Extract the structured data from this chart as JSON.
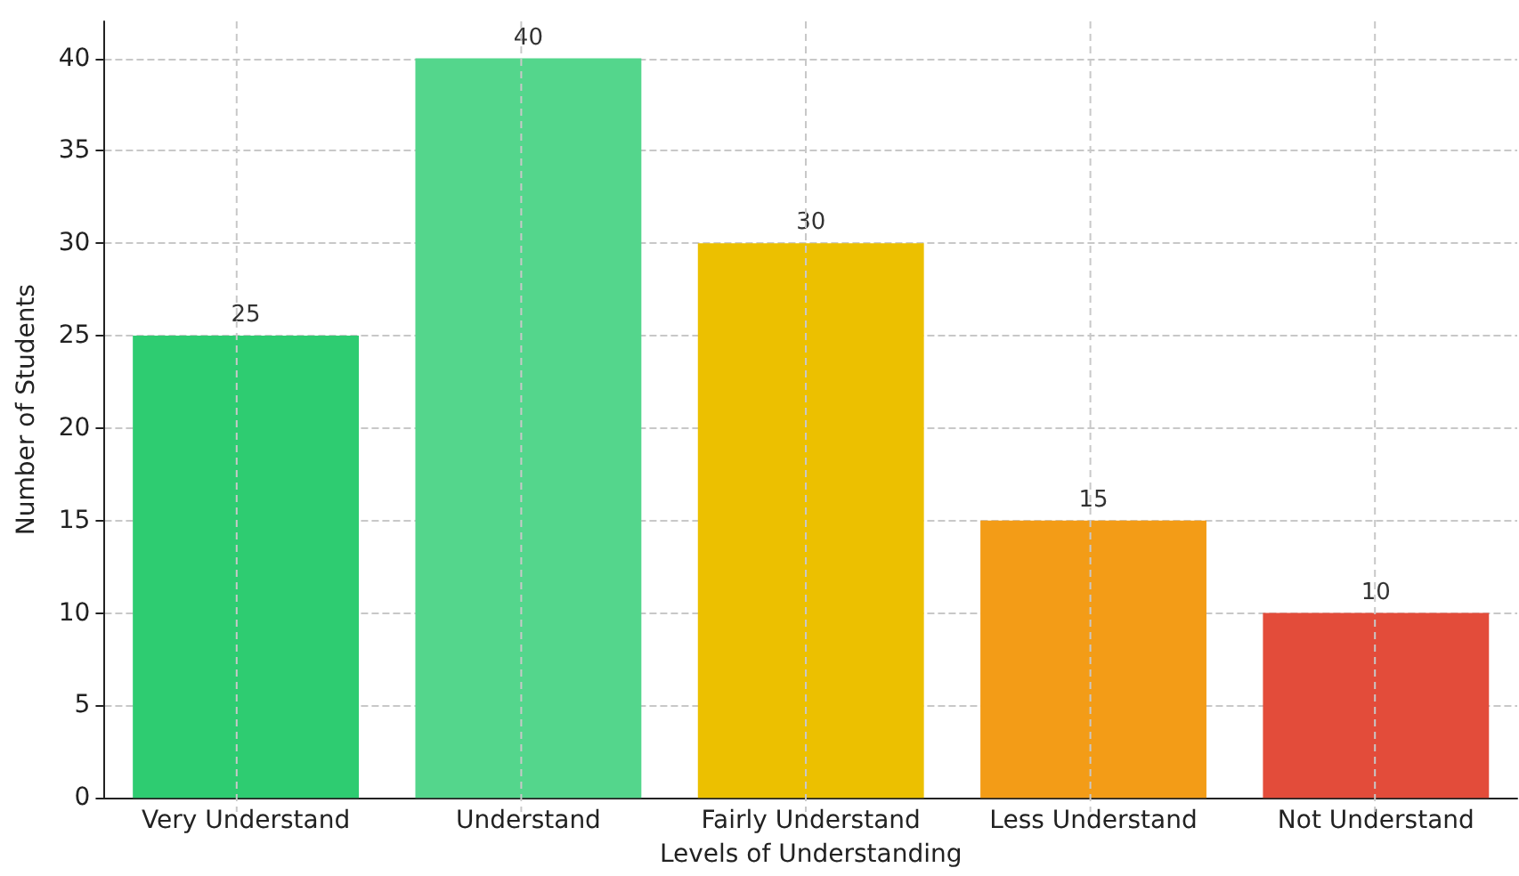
{
  "chart_data": {
    "type": "bar",
    "xlabel": "Levels of Understanding",
    "ylabel": "Number of Students",
    "categories": [
      "Very Understand",
      "Understand",
      "Fairly Understand",
      "Less Understand",
      "Not Understand"
    ],
    "values": [
      25,
      40,
      30,
      15,
      10
    ],
    "colors": [
      "#2ecc71",
      "#54d68c",
      "#ecc000",
      "#f39c17",
      "#e34c3a"
    ],
    "ylim": [
      0,
      42
    ],
    "yticks": [
      0,
      5,
      10,
      15,
      20,
      25,
      30,
      35,
      40
    ],
    "grid": true,
    "data_labels": true
  }
}
